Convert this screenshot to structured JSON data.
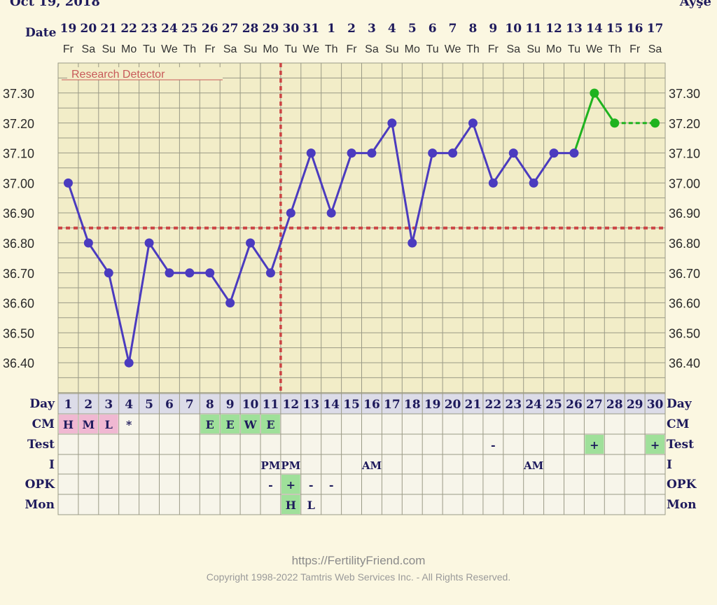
{
  "header": {
    "date_text": "Oct 19, 2018",
    "user_name": "Ayşe"
  },
  "row_labels": {
    "date": "Date",
    "day": "Day",
    "cm": "CM",
    "test": "Test",
    "intercourse": "I",
    "opk": "OPK",
    "monitor": "Mon"
  },
  "research_label": "Research Detector",
  "footer": {
    "url": "https://FertilityFriend.com",
    "copyright": "Copyright 1998-2022 Tamtris Web Services Inc. - All Rights Reserved."
  },
  "colors": {
    "temp_line": "#4b3bbf",
    "projected_line": "#1fb31f",
    "coverline": "#cc4444",
    "grid": "#9a9a86",
    "plot_bg": "#f2edc8",
    "text": "#1e1a5c",
    "cm_pink": "#f0b8d2",
    "cm_green": "#9fe09a"
  },
  "chart_data": {
    "type": "line",
    "ylim": [
      36.3,
      37.4
    ],
    "y_ticks": [
      "37.30",
      "37.20",
      "37.10",
      "37.00",
      "36.90",
      "36.80",
      "36.70",
      "36.60",
      "36.50",
      "36.40"
    ],
    "coverline": 36.85,
    "ovulation_cycle_day": 11,
    "dates": [
      "19",
      "20",
      "21",
      "22",
      "23",
      "24",
      "25",
      "26",
      "27",
      "28",
      "29",
      "30",
      "31",
      "1",
      "2",
      "3",
      "4",
      "5",
      "6",
      "7",
      "8",
      "9",
      "10",
      "11",
      "12",
      "13",
      "14",
      "15",
      "16",
      "17"
    ],
    "weekdays": [
      "Fr",
      "Sa",
      "Su",
      "Mo",
      "Tu",
      "We",
      "Th",
      "Fr",
      "Sa",
      "Su",
      "Mo",
      "Tu",
      "We",
      "Th",
      "Fr",
      "Sa",
      "Su",
      "Mo",
      "Tu",
      "We",
      "Th",
      "Fr",
      "Sa",
      "Su",
      "Mo",
      "Tu",
      "We",
      "Th",
      "Fr",
      "Sa"
    ],
    "cycle_days": [
      "1",
      "2",
      "3",
      "4",
      "5",
      "6",
      "7",
      "8",
      "9",
      "10",
      "11",
      "12",
      "13",
      "14",
      "15",
      "16",
      "17",
      "18",
      "19",
      "20",
      "21",
      "22",
      "23",
      "24",
      "25",
      "26",
      "27",
      "28",
      "29",
      "30"
    ],
    "temperatures": [
      37.0,
      36.8,
      36.7,
      36.4,
      36.8,
      36.7,
      36.7,
      36.7,
      36.6,
      36.8,
      36.7,
      36.9,
      37.1,
      36.9,
      37.1,
      37.1,
      37.2,
      36.8,
      37.1,
      37.1,
      37.2,
      37.0,
      37.1,
      37.0,
      37.1,
      37.1,
      37.3,
      37.2,
      null,
      37.2
    ],
    "recorded_until_day": 26,
    "projected_dashed_from_day": 28,
    "cm": [
      "H",
      "M",
      "L",
      "*",
      "",
      "",
      "",
      "E",
      "E",
      "W",
      "E",
      "",
      "",
      "",
      "",
      "",
      "",
      "",
      "",
      "",
      "",
      "",
      "",
      "",
      "",
      "",
      "",
      "",
      "",
      ""
    ],
    "test": [
      "",
      "",
      "",
      "",
      "",
      "",
      "",
      "",
      "",
      "",
      "",
      "",
      "",
      "",
      "",
      "",
      "",
      "",
      "",
      "",
      "",
      "-",
      "",
      "",
      "",
      "",
      "+",
      "",
      "",
      "+"
    ],
    "intercourse": [
      "",
      "",
      "",
      "",
      "",
      "",
      "",
      "",
      "",
      "",
      "PM",
      "PM",
      "",
      "",
      "",
      "AM",
      "",
      "",
      "",
      "",
      "",
      "",
      "",
      "AM",
      "",
      "",
      "",
      "",
      "",
      ""
    ],
    "opk": [
      "",
      "",
      "",
      "",
      "",
      "",
      "",
      "",
      "",
      "",
      "-",
      "+",
      "-",
      "-",
      "",
      "",
      "",
      "",
      "",
      "",
      "",
      "",
      "",
      "",
      "",
      "",
      "",
      "",
      "",
      ""
    ],
    "monitor": [
      "",
      "",
      "",
      "",
      "",
      "",
      "",
      "",
      "",
      "",
      "",
      "H",
      "L",
      "",
      "",
      "",
      "",
      "",
      "",
      "",
      "",
      "",
      "",
      "",
      "",
      "",
      "",
      "",
      "",
      ""
    ]
  }
}
